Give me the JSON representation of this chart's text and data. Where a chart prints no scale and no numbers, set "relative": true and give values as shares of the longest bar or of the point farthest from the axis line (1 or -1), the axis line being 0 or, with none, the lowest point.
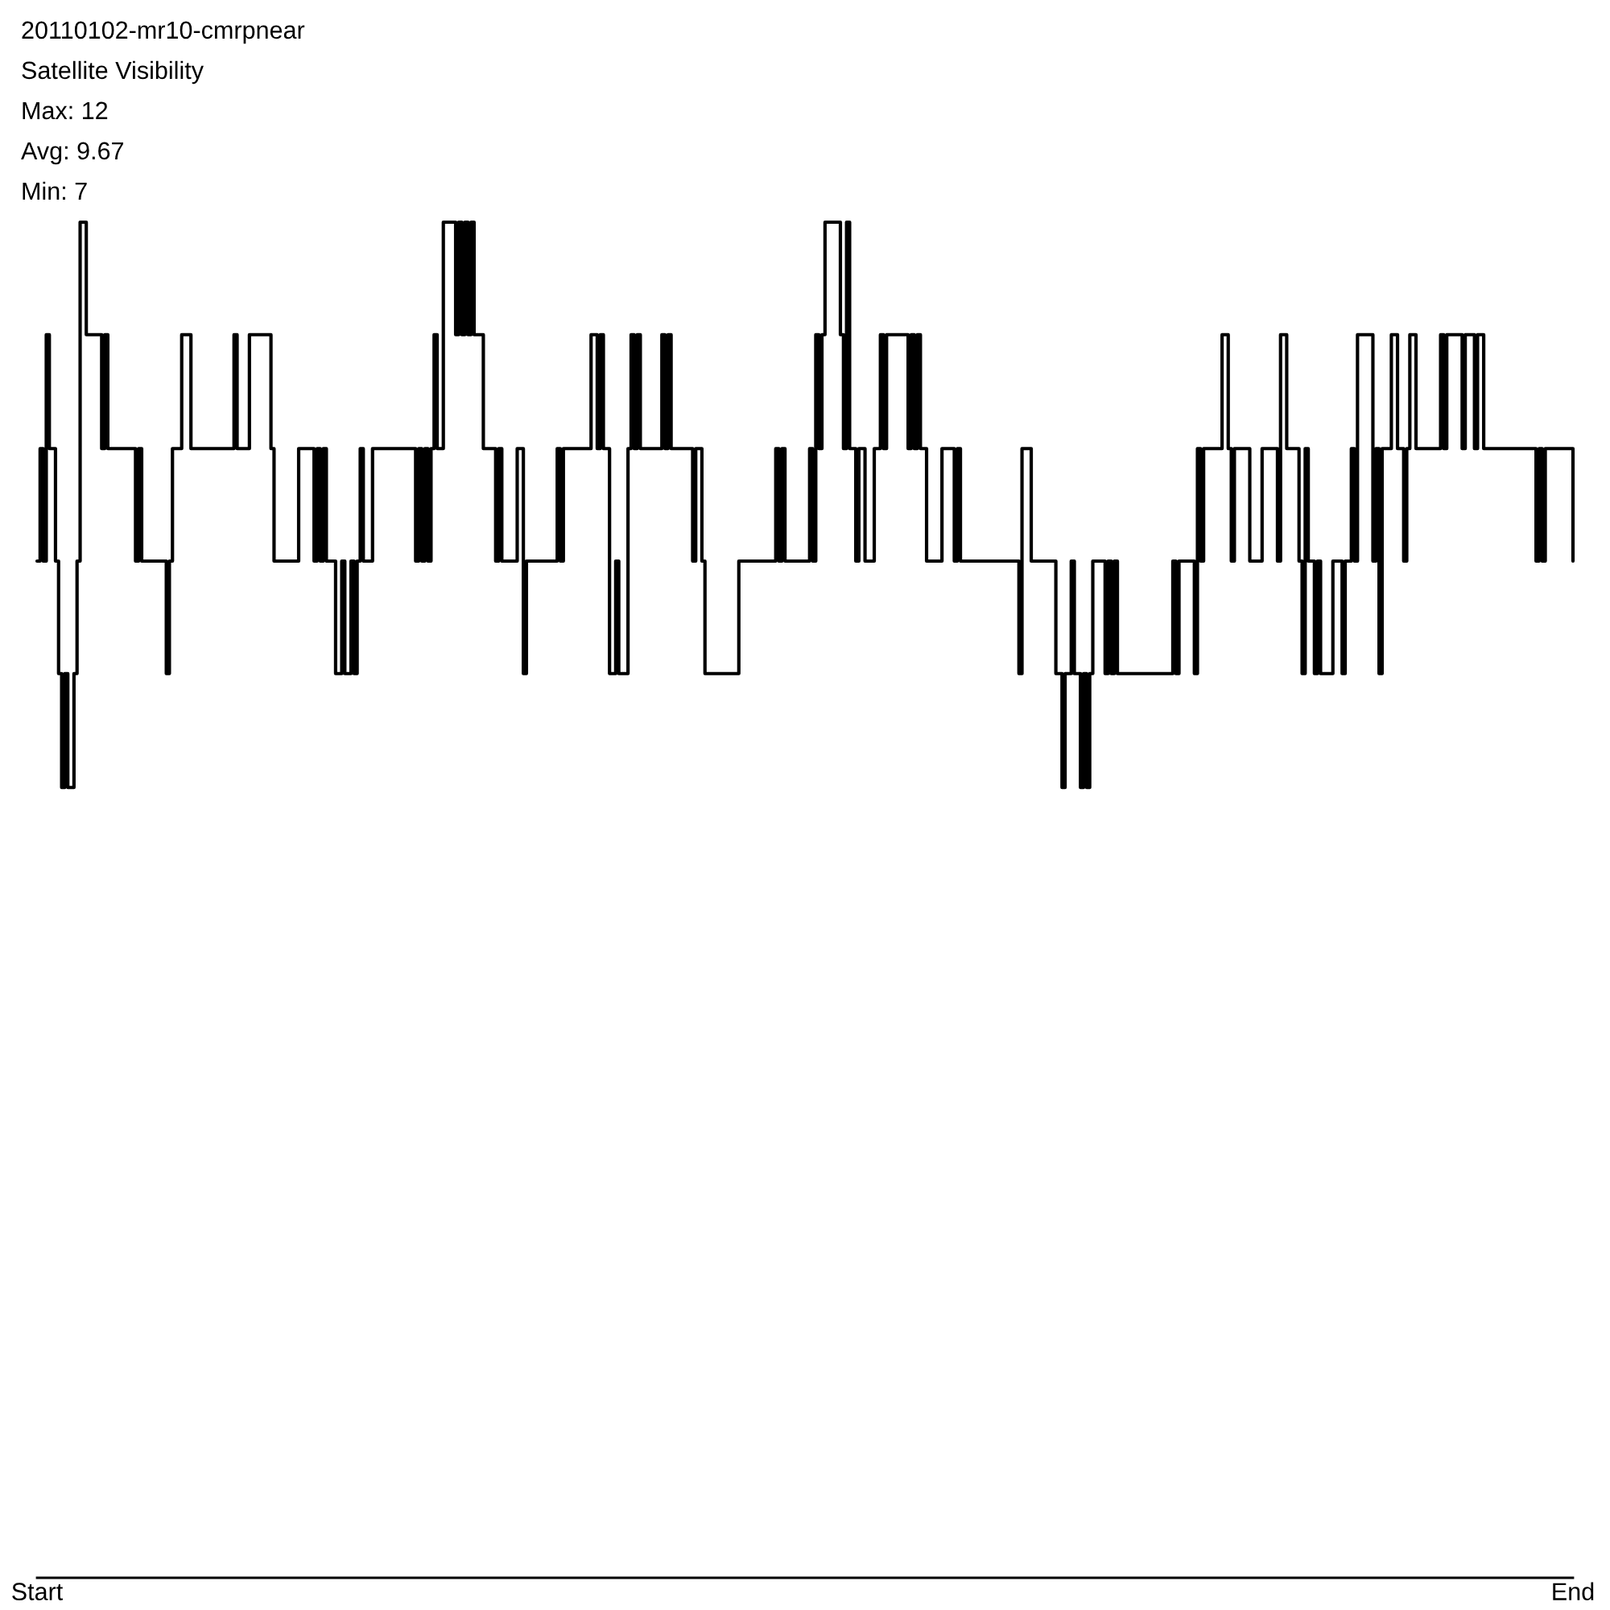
{
  "chart_data": {
    "type": "step",
    "title": "20110102-mr10-cmrpnear",
    "subtitle": "Satellite Visibility",
    "annotations": [
      "Max: 12",
      "Avg: 9.67",
      "Min: 7"
    ],
    "relative": true,
    "color": "#000000",
    "categories": [
      "Start",
      null,
      null,
      null,
      null,
      null,
      null,
      null,
      null,
      null,
      null,
      null,
      null,
      null,
      null,
      null,
      null,
      null,
      null,
      null,
      null,
      null,
      null,
      null,
      null,
      null,
      null,
      null,
      null,
      null,
      null,
      null,
      null,
      null,
      null,
      null,
      null,
      null,
      null,
      null,
      null,
      null,
      null,
      null,
      null,
      null,
      null,
      null,
      null,
      null,
      null,
      null,
      null,
      null,
      null,
      null,
      null,
      null,
      null,
      null,
      null,
      null,
      null,
      null,
      null,
      null,
      null,
      null,
      null,
      null,
      null,
      null,
      null,
      null,
      null,
      null,
      null,
      null,
      null,
      null,
      null,
      null,
      null,
      null,
      null,
      null,
      null,
      null,
      null,
      null,
      null,
      null,
      null,
      null,
      null,
      null,
      null,
      null,
      null,
      null,
      null,
      null,
      null,
      null,
      null,
      null,
      null,
      null,
      null,
      null,
      null,
      null,
      null,
      null,
      null,
      null,
      null,
      null,
      null,
      null,
      null,
      null,
      null,
      null,
      null,
      null,
      null,
      null,
      null,
      null,
      null,
      null,
      null,
      null,
      null,
      null,
      null,
      null,
      null,
      null,
      null,
      null,
      null,
      null,
      null,
      null,
      null,
      null,
      null,
      null,
      null,
      null,
      null,
      null,
      null,
      null,
      null,
      null,
      null,
      null,
      null,
      null,
      null,
      null,
      null,
      null,
      null,
      null,
      null,
      null,
      null,
      null,
      null,
      null,
      null,
      null,
      null,
      null,
      null,
      null,
      null,
      null,
      null,
      null,
      null,
      null,
      null,
      null,
      null,
      null,
      null,
      null,
      null,
      null,
      null,
      null,
      null,
      null,
      null,
      null,
      null,
      null,
      null,
      null,
      null,
      null,
      null,
      null,
      null,
      null,
      null,
      null,
      null,
      null,
      null,
      null,
      null,
      null,
      null,
      null,
      null,
      null,
      null,
      null,
      null,
      null,
      null,
      null,
      null,
      null,
      null,
      null,
      null,
      null,
      null,
      null,
      null,
      null,
      null,
      null,
      null,
      null,
      null,
      null,
      null,
      null,
      null,
      null,
      null,
      null,
      null,
      null,
      null,
      null,
      null,
      null,
      null,
      null,
      null,
      null,
      null,
      null,
      null,
      null,
      null,
      null,
      null,
      null,
      null,
      null,
      null,
      null,
      null,
      null,
      null,
      null,
      null,
      null,
      null,
      null,
      null,
      null,
      null,
      null,
      null,
      null,
      null,
      null,
      null,
      null,
      null,
      null,
      null,
      null,
      null,
      null,
      null,
      null,
      null,
      null,
      null,
      null,
      null,
      null,
      null,
      null,
      null,
      null,
      null,
      null,
      null,
      null,
      null,
      null,
      null,
      null,
      null,
      null,
      null,
      null,
      null,
      null,
      null,
      null,
      null,
      null,
      null,
      null,
      null,
      null,
      null,
      null,
      null,
      null,
      null,
      null,
      null,
      null,
      null,
      null,
      null,
      null,
      null,
      null,
      null,
      null,
      null,
      null,
      null,
      null,
      null,
      null,
      null,
      null,
      null,
      null,
      null,
      null,
      null,
      null,
      null,
      null,
      null,
      null,
      null,
      null,
      null,
      null,
      null,
      null,
      null,
      null,
      null,
      null,
      null,
      null,
      null,
      null,
      null,
      null,
      null,
      null,
      null,
      null,
      null,
      null,
      null,
      null,
      null,
      null,
      null,
      null,
      null,
      null,
      null,
      null,
      null,
      null,
      null,
      null,
      null,
      null,
      null,
      null,
      null,
      null,
      null,
      null,
      null,
      null,
      null,
      null,
      null,
      null,
      null,
      null,
      null,
      null,
      null,
      null,
      null,
      null,
      null,
      null,
      null,
      null,
      null,
      null,
      null,
      null,
      null,
      null,
      null,
      null,
      null,
      null,
      null,
      null,
      null,
      null,
      null,
      null,
      null,
      null,
      null,
      null,
      null,
      null,
      null,
      null,
      null,
      null,
      null,
      null,
      null,
      null,
      null,
      null,
      null,
      null,
      null,
      null,
      null,
      null,
      null,
      null,
      null,
      null,
      null,
      null,
      null,
      null,
      null,
      null,
      null,
      null,
      null,
      null,
      null,
      null,
      null,
      null,
      null,
      null,
      null,
      null,
      null,
      null,
      null,
      null,
      null,
      null,
      null,
      null,
      null,
      null,
      null,
      null,
      null,
      "End"
    ],
    "values": [
      0.75,
      0.833,
      0.75,
      0.917,
      0.833,
      0.833,
      0.75,
      0.667,
      0.583,
      0.667,
      0.583,
      0.583,
      0.667,
      0.75,
      1,
      1,
      0.917,
      0.917,
      0.917,
      0.917,
      0.917,
      0.833,
      0.917,
      0.833,
      0.833,
      0.833,
      0.833,
      0.833,
      0.833,
      0.833,
      0.833,
      0.833,
      0.75,
      0.833,
      0.75,
      0.75,
      0.75,
      0.75,
      0.75,
      0.75,
      0.75,
      0.75,
      0.667,
      0.75,
      0.833,
      0.833,
      0.833,
      0.917,
      0.917,
      0.917,
      0.833,
      0.833,
      0.833,
      0.833,
      0.833,
      0.833,
      0.833,
      0.833,
      0.833,
      0.833,
      0.833,
      0.833,
      0.833,
      0.833,
      0.917,
      0.833,
      0.833,
      0.833,
      0.833,
      0.917,
      0.917,
      0.917,
      0.917,
      0.917,
      0.917,
      0.917,
      0.833,
      0.75,
      0.75,
      0.75,
      0.75,
      0.75,
      0.75,
      0.75,
      0.75,
      0.833,
      0.833,
      0.833,
      0.833,
      0.833,
      0.75,
      0.833,
      0.75,
      0.833,
      0.75,
      0.75,
      0.75,
      0.667,
      0.667,
      0.75,
      0.667,
      0.667,
      0.75,
      0.667,
      0.75,
      0.833,
      0.75,
      0.75,
      0.75,
      0.833,
      0.833,
      0.833,
      0.833,
      0.833,
      0.833,
      0.833,
      0.833,
      0.833,
      0.833,
      0.833,
      0.833,
      0.833,
      0.833,
      0.75,
      0.833,
      0.75,
      0.833,
      0.75,
      0.833,
      0.917,
      0.833,
      0.833,
      1,
      1,
      1,
      1,
      0.917,
      1,
      0.917,
      1,
      0.917,
      1,
      0.917,
      0.917,
      0.917,
      0.833,
      0.833,
      0.833,
      0.833,
      0.75,
      0.833,
      0.75,
      0.75,
      0.75,
      0.75,
      0.75,
      0.833,
      0.833,
      0.667,
      0.75,
      0.75,
      0.75,
      0.75,
      0.75,
      0.75,
      0.75,
      0.75,
      0.75,
      0.75,
      0.833,
      0.75,
      0.833,
      0.833,
      0.833,
      0.833,
      0.833,
      0.833,
      0.833,
      0.833,
      0.833,
      0.917,
      0.917,
      0.833,
      0.917,
      0.833,
      0.833,
      0.667,
      0.667,
      0.75,
      0.667,
      0.667,
      0.667,
      0.833,
      0.917,
      0.833,
      0.917,
      0.833,
      0.833,
      0.833,
      0.833,
      0.833,
      0.833,
      0.833,
      0.917,
      0.833,
      0.917,
      0.833,
      0.833,
      0.833,
      0.833,
      0.833,
      0.833,
      0.833,
      0.75,
      0.833,
      0.833,
      0.75,
      0.667,
      0.667,
      0.667,
      0.667,
      0.667,
      0.667,
      0.667,
      0.667,
      0.667,
      0.667,
      0.667,
      0.75,
      0.75,
      0.75,
      0.75,
      0.75,
      0.75,
      0.75,
      0.75,
      0.75,
      0.75,
      0.75,
      0.75,
      0.833,
      0.75,
      0.833,
      0.75,
      0.75,
      0.75,
      0.75,
      0.75,
      0.75,
      0.75,
      0.75,
      0.833,
      0.75,
      0.917,
      0.833,
      0.917,
      1,
      1,
      1,
      1,
      1,
      0.917,
      0.833,
      1,
      0.833,
      0.833,
      0.75,
      0.833,
      0.833,
      0.75,
      0.75,
      0.75,
      0.833,
      0.833,
      0.917,
      0.833,
      0.917,
      0.917,
      0.917,
      0.917,
      0.917,
      0.917,
      0.917,
      0.833,
      0.917,
      0.833,
      0.917,
      0.833,
      0.833,
      0.75,
      0.75,
      0.75,
      0.75,
      0.75,
      0.833,
      0.833,
      0.833,
      0.833,
      0.75,
      0.833,
      0.75,
      0.75,
      0.75,
      0.75,
      0.75,
      0.75,
      0.75,
      0.75,
      0.75,
      0.75,
      0.75,
      0.75,
      0.75,
      0.75,
      0.75,
      0.75,
      0.75,
      0.75,
      0.75,
      0.667,
      0.833,
      0.833,
      0.833,
      0.75,
      0.75,
      0.75,
      0.75,
      0.75,
      0.75,
      0.75,
      0.75,
      0.667,
      0.667,
      0.583,
      0.667,
      0.667,
      0.75,
      0.667,
      0.667,
      0.583,
      0.667,
      0.583,
      0.667,
      0.75,
      0.75,
      0.75,
      0.75,
      0.667,
      0.75,
      0.667,
      0.75,
      0.667,
      0.667,
      0.667,
      0.667,
      0.667,
      0.667,
      0.667,
      0.667,
      0.667,
      0.667,
      0.667,
      0.667,
      0.667,
      0.667,
      0.667,
      0.667,
      0.667,
      0.667,
      0.75,
      0.667,
      0.75,
      0.75,
      0.75,
      0.75,
      0.75,
      0.667,
      0.833,
      0.75,
      0.833,
      0.833,
      0.833,
      0.833,
      0.833,
      0.833,
      0.917,
      0.917,
      0.833,
      0.75,
      0.833,
      0.833,
      0.833,
      0.833,
      0.833,
      0.75,
      0.75,
      0.75,
      0.75,
      0.833,
      0.833,
      0.833,
      0.833,
      0.833,
      0.75,
      0.917,
      0.917,
      0.833,
      0.833,
      0.833,
      0.833,
      0.75,
      0.667,
      0.833,
      0.75,
      0.75,
      0.667,
      0.75,
      0.667,
      0.667,
      0.667,
      0.667,
      0.75,
      0.75,
      0.75,
      0.667,
      0.75,
      0.75,
      0.833,
      0.75,
      0.917,
      0.917,
      0.917,
      0.917,
      0.917,
      0.75,
      0.833,
      0.667,
      0.833,
      0.833,
      0.833,
      0.917,
      0.917,
      0.833,
      0.833,
      0.75,
      0.833,
      0.917,
      0.917,
      0.833,
      0.833,
      0.833,
      0.833,
      0.833,
      0.833,
      0.833,
      0.833,
      0.917,
      0.833,
      0.917,
      0.917,
      0.917,
      0.917,
      0.917,
      0.833,
      0.917,
      0.917,
      0.917,
      0.833,
      0.917,
      0.917,
      0.833,
      0.833,
      0.833,
      0.833,
      0.833,
      0.833,
      0.833,
      0.833,
      0.833,
      0.833,
      0.833,
      0.833,
      0.833,
      0.833,
      0.833,
      0.833,
      0.833,
      0.75,
      0.833,
      0.75,
      0.833,
      0.833,
      0.833,
      0.833,
      0.833,
      0.833,
      0.833,
      0.833,
      0.833,
      0.75
    ]
  }
}
